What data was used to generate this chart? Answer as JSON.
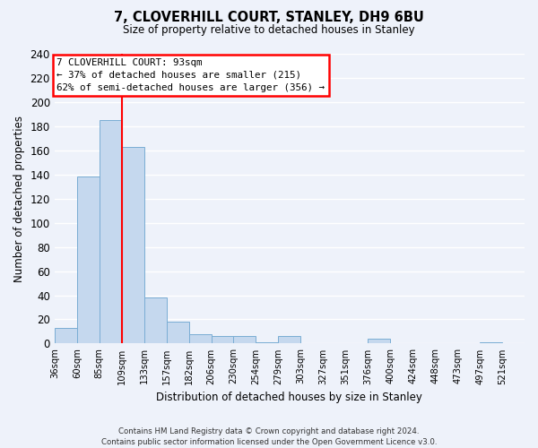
{
  "title": "7, CLOVERHILL COURT, STANLEY, DH9 6BU",
  "subtitle": "Size of property relative to detached houses in Stanley",
  "xlabel": "Distribution of detached houses by size in Stanley",
  "ylabel": "Number of detached properties",
  "bar_color": "#c5d8ee",
  "bar_edge_color": "#7aadd4",
  "background_color": "#eef2fa",
  "grid_color": "#ffffff",
  "bin_labels": [
    "36sqm",
    "60sqm",
    "85sqm",
    "109sqm",
    "133sqm",
    "157sqm",
    "182sqm",
    "206sqm",
    "230sqm",
    "254sqm",
    "279sqm",
    "303sqm",
    "327sqm",
    "351sqm",
    "376sqm",
    "400sqm",
    "424sqm",
    "448sqm",
    "473sqm",
    "497sqm",
    "521sqm"
  ],
  "bar_heights": [
    13,
    138,
    185,
    163,
    38,
    18,
    8,
    6,
    6,
    1,
    6,
    0,
    0,
    0,
    4,
    0,
    0,
    0,
    0,
    1,
    0
  ],
  "property_line_bin_index": 2,
  "ylim": [
    0,
    240
  ],
  "yticks": [
    0,
    20,
    40,
    60,
    80,
    100,
    120,
    140,
    160,
    180,
    200,
    220,
    240
  ],
  "annotation_title": "7 CLOVERHILL COURT: 93sqm",
  "annotation_line1": "← 37% of detached houses are smaller (215)",
  "annotation_line2": "62% of semi-detached houses are larger (356) →",
  "footer_line1": "Contains HM Land Registry data © Crown copyright and database right 2024.",
  "footer_line2": "Contains public sector information licensed under the Open Government Licence v3.0."
}
